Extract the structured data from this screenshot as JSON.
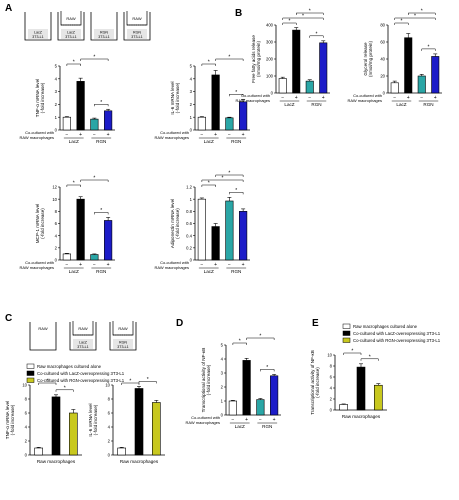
{
  "colors": {
    "white": "#ffffff",
    "black": "#000000",
    "teal": "#2aa6a6",
    "blue": "#1c1cc8",
    "olive": "#c8c81e",
    "axis": "#000000"
  },
  "panel_labels": {
    "A": "A",
    "B": "B",
    "C": "C",
    "D": "D",
    "E": "E"
  },
  "wells": {
    "A": [
      {
        "top": "",
        "bottom": "LacZ\n3T3-L1",
        "insert": false
      },
      {
        "top": "RAW",
        "bottom": "LacZ\n3T3-L1",
        "insert": true
      },
      {
        "top": "",
        "bottom": "RGN\n3T3-L1",
        "insert": false
      },
      {
        "top": "RAW",
        "bottom": "RGN\n3T3-L1",
        "insert": true
      }
    ],
    "C": [
      {
        "top": "RAW",
        "bottom": "",
        "insert": false
      },
      {
        "top": "RAW",
        "bottom": "LacZ\n3T3-L1",
        "insert": true
      },
      {
        "top": "RAW",
        "bottom": "RGN\n3T3-L1",
        "insert": true
      }
    ]
  },
  "cocult": {
    "label_line1": "Co-cultured with",
    "label_line2": "RAW macrophages",
    "minus": "−",
    "plus": "+",
    "group1": "LacZ",
    "group2": "RGN"
  },
  "legend_C": [
    {
      "label": "Raw macrophages cultured alone",
      "color": "#ffffff"
    },
    {
      "label": "Co-cultured with LacZ-overexpressing 3T3-L1",
      "color": "#000000"
    },
    {
      "label": "Co-cultured with RGN-overexpressing 3T3-L1",
      "color": "#c8c81e"
    }
  ],
  "legend_E": [
    {
      "label": "Raw macrophages cultured alone",
      "color": "#ffffff"
    },
    {
      "label": "Co-cultured with LacZ-overexpressing 3T3-L1",
      "color": "#000000"
    },
    {
      "label": "Co-cultured with RGN-overexpressing 3T3-L1",
      "color": "#c8c81e"
    }
  ],
  "chart_data": [
    {
      "id": "A1",
      "panel": "A",
      "type": "bar",
      "ylabel": "TNF-α mRNA level\n(-fold increase)",
      "ylim": [
        0,
        5
      ],
      "yticks": [
        0,
        1,
        2,
        3,
        4,
        5
      ],
      "values": [
        1.0,
        3.8,
        0.85,
        1.5
      ],
      "errors": [
        0.05,
        0.25,
        0.08,
        0.12
      ],
      "colors": [
        "#ffffff",
        "#000000",
        "#2aa6a6",
        "#1c1cc8"
      ],
      "brackets": [
        [
          0,
          1
        ],
        [
          1,
          3
        ],
        [
          2,
          3
        ]
      ],
      "xgroups": "cocult"
    },
    {
      "id": "A2",
      "panel": "A",
      "type": "bar",
      "ylabel": "IL-6 mRNA level\n(-fold increase)",
      "ylim": [
        0,
        5
      ],
      "yticks": [
        0,
        1,
        2,
        3,
        4,
        5
      ],
      "values": [
        1.0,
        4.3,
        0.95,
        2.2
      ],
      "errors": [
        0.05,
        0.35,
        0.05,
        0.2
      ],
      "colors": [
        "#ffffff",
        "#000000",
        "#2aa6a6",
        "#1c1cc8"
      ],
      "brackets": [
        [
          0,
          1
        ],
        [
          1,
          3
        ],
        [
          2,
          3
        ]
      ],
      "xgroups": "cocult"
    },
    {
      "id": "A3",
      "panel": "A",
      "type": "bar",
      "ylabel": "MCP-1 mRNA level\n(-fold increase)",
      "ylim": [
        0,
        12
      ],
      "yticks": [
        0,
        2,
        4,
        6,
        8,
        10,
        12
      ],
      "values": [
        1.0,
        10.0,
        0.9,
        6.5
      ],
      "errors": [
        0.1,
        0.4,
        0.1,
        0.5
      ],
      "colors": [
        "#ffffff",
        "#000000",
        "#2aa6a6",
        "#1c1cc8"
      ],
      "brackets": [
        [
          0,
          1
        ],
        [
          1,
          3
        ],
        [
          2,
          3
        ]
      ],
      "xgroups": "cocult"
    },
    {
      "id": "A4",
      "panel": "A",
      "type": "bar",
      "ylabel": "Adiponectin mRNA level\n(-fold increase)",
      "ylim": [
        0,
        1.2
      ],
      "yticks": [
        0,
        0.2,
        0.4,
        0.6,
        0.8,
        1.0,
        1.2
      ],
      "values": [
        1.0,
        0.55,
        0.97,
        0.8
      ],
      "errors": [
        0.02,
        0.05,
        0.06,
        0.04
      ],
      "colors": [
        "#ffffff",
        "#000000",
        "#2aa6a6",
        "#1c1cc8"
      ],
      "brackets": [
        [
          0,
          1
        ],
        [
          0,
          3
        ],
        [
          1,
          3
        ],
        [
          2,
          3
        ]
      ],
      "xgroups": "cocult"
    },
    {
      "id": "B1",
      "panel": "B",
      "type": "bar",
      "ylabel": "Free fatty acids release\n(nmol/mg protein)",
      "ylim": [
        0,
        400
      ],
      "yticks": [
        0,
        100,
        200,
        300,
        400
      ],
      "values": [
        85,
        370,
        70,
        295
      ],
      "errors": [
        8,
        15,
        8,
        12
      ],
      "colors": [
        "#ffffff",
        "#000000",
        "#2aa6a6",
        "#1c1cc8"
      ],
      "brackets": [
        [
          0,
          1
        ],
        [
          0,
          3
        ],
        [
          1,
          3
        ],
        [
          2,
          3
        ]
      ],
      "xgroups": "cocult"
    },
    {
      "id": "B2",
      "panel": "B",
      "type": "bar",
      "ylabel": "Glycerol release\n(nmol/mg protein)",
      "ylim": [
        0,
        80
      ],
      "yticks": [
        0,
        20,
        40,
        60,
        80
      ],
      "values": [
        12,
        65,
        20,
        43
      ],
      "errors": [
        2,
        5,
        2,
        3
      ],
      "colors": [
        "#ffffff",
        "#000000",
        "#2aa6a6",
        "#1c1cc8"
      ],
      "brackets": [
        [
          0,
          1
        ],
        [
          0,
          3
        ],
        [
          1,
          3
        ],
        [
          2,
          3
        ]
      ],
      "xgroups": "cocult"
    },
    {
      "id": "C1",
      "panel": "C",
      "type": "bar",
      "ylabel": "TNF-α mRNA level\n(-fold increase)",
      "ylim": [
        0,
        10
      ],
      "yticks": [
        0,
        2,
        4,
        6,
        8,
        10
      ],
      "values": [
        1.0,
        8.3,
        6.0
      ],
      "errors": [
        0.1,
        0.3,
        0.5
      ],
      "colors": [
        "#ffffff",
        "#000000",
        "#c8c81e"
      ],
      "brackets": [
        [
          0,
          1
        ],
        [
          1,
          2
        ]
      ],
      "xlabel": "Raw macrophages"
    },
    {
      "id": "C2",
      "panel": "C",
      "type": "bar",
      "ylabel": "IL-6 mRNA level\n(-fold increase)",
      "ylim": [
        0,
        10
      ],
      "yticks": [
        0,
        2,
        4,
        6,
        8,
        10
      ],
      "values": [
        1.0,
        9.5,
        7.5
      ],
      "errors": [
        0.1,
        0.3,
        0.3
      ],
      "colors": [
        "#ffffff",
        "#000000",
        "#c8c81e"
      ],
      "brackets": [
        [
          0,
          1
        ],
        [
          1,
          2
        ]
      ],
      "xlabel": "Raw macrophages"
    },
    {
      "id": "D1",
      "panel": "D",
      "type": "bar",
      "ylabel": "Transcriptional activity of NF-κB\n(-fold increase)",
      "ylim": [
        0,
        5
      ],
      "yticks": [
        0,
        1,
        2,
        3,
        4,
        5
      ],
      "values": [
        1.0,
        3.9,
        1.1,
        2.8
      ],
      "errors": [
        0.05,
        0.15,
        0.08,
        0.1
      ],
      "colors": [
        "#ffffff",
        "#000000",
        "#2aa6a6",
        "#1c1cc8"
      ],
      "brackets": [
        [
          0,
          1
        ],
        [
          1,
          3
        ],
        [
          2,
          3
        ]
      ],
      "xgroups": "cocult"
    },
    {
      "id": "E1",
      "panel": "E",
      "type": "bar",
      "ylabel": "Transcriptional activity of NF-κB\n(-fold increase)",
      "ylim": [
        0,
        10
      ],
      "yticks": [
        0,
        2,
        4,
        6,
        8,
        10
      ],
      "values": [
        1.0,
        7.8,
        4.5
      ],
      "errors": [
        0.1,
        0.6,
        0.3
      ],
      "colors": [
        "#ffffff",
        "#000000",
        "#c8c81e"
      ],
      "brackets": [
        [
          0,
          1
        ],
        [
          1,
          2
        ]
      ],
      "xlabel": "Raw macrophages"
    }
  ]
}
